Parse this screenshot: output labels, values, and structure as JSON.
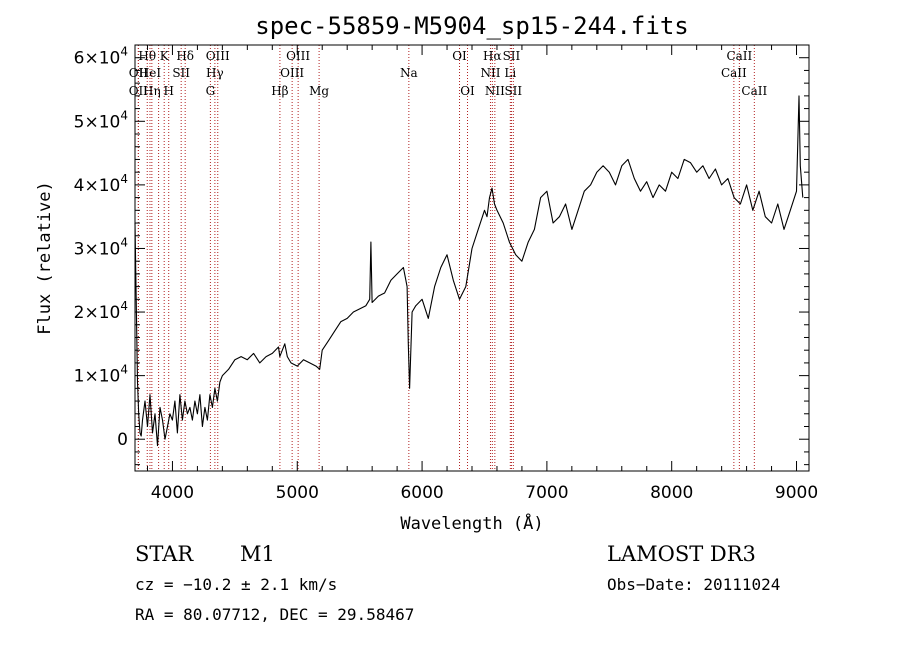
{
  "chart_data": {
    "type": "line",
    "title": "spec-55859-M5904_sp15-244.fits",
    "xlabel": "Wavelength (Å)",
    "ylabel": "Flux (relative)",
    "xlim": [
      3700,
      9100
    ],
    "ylim": [
      -5000,
      62000
    ],
    "x_ticks": [
      {
        "value": 4000,
        "label": "4000"
      },
      {
        "value": 5000,
        "label": "5000"
      },
      {
        "value": 6000,
        "label": "6000"
      },
      {
        "value": 7000,
        "label": "7000"
      },
      {
        "value": 8000,
        "label": "8000"
      },
      {
        "value": 9000,
        "label": "9000"
      }
    ],
    "y_ticks": [
      {
        "value": 0,
        "mant": "0",
        "exp": ""
      },
      {
        "value": 10000,
        "mant": "1×10",
        "exp": "4"
      },
      {
        "value": 20000,
        "mant": "2×10",
        "exp": "4"
      },
      {
        "value": 30000,
        "mant": "3×10",
        "exp": "4"
      },
      {
        "value": 40000,
        "mant": "4×10",
        "exp": "4"
      },
      {
        "value": 50000,
        "mant": "5×10",
        "exp": "4"
      },
      {
        "value": 60000,
        "mant": "6×10",
        "exp": "4"
      }
    ],
    "series": [
      {
        "name": "spectrum",
        "x": [
          3700,
          3710,
          3720,
          3730,
          3740,
          3750,
          3760,
          3780,
          3800,
          3820,
          3840,
          3860,
          3880,
          3900,
          3920,
          3940,
          3960,
          3980,
          4000,
          4020,
          4040,
          4060,
          4080,
          4100,
          4120,
          4140,
          4160,
          4180,
          4200,
          4220,
          4240,
          4260,
          4280,
          4300,
          4320,
          4340,
          4360,
          4380,
          4400,
          4450,
          4500,
          4550,
          4600,
          4650,
          4700,
          4750,
          4800,
          4850,
          4860,
          4880,
          4900,
          4920,
          4950,
          5000,
          5050,
          5100,
          5150,
          5180,
          5200,
          5250,
          5300,
          5350,
          5400,
          5450,
          5500,
          5550,
          5580,
          5590,
          5600,
          5650,
          5700,
          5750,
          5800,
          5850,
          5880,
          5890,
          5900,
          5920,
          5950,
          6000,
          6050,
          6100,
          6150,
          6200,
          6250,
          6300,
          6350,
          6400,
          6450,
          6500,
          6520,
          6540,
          6560,
          6580,
          6600,
          6650,
          6700,
          6750,
          6800,
          6850,
          6900,
          6950,
          7000,
          7050,
          7100,
          7150,
          7200,
          7250,
          7300,
          7350,
          7400,
          7450,
          7500,
          7550,
          7600,
          7650,
          7700,
          7750,
          7800,
          7850,
          7900,
          7950,
          8000,
          8050,
          8100,
          8150,
          8200,
          8250,
          8300,
          8350,
          8400,
          8450,
          8500,
          8550,
          8600,
          8650,
          8700,
          8750,
          8800,
          8850,
          8900,
          8950,
          9000,
          9020,
          9030,
          9050
        ],
        "y": [
          34000,
          22000,
          9000,
          4000,
          1000,
          500,
          3000,
          6000,
          2000,
          7000,
          1000,
          4000,
          -1000,
          5000,
          3000,
          0,
          2000,
          4000,
          3000,
          6000,
          1000,
          7000,
          3000,
          6000,
          4000,
          5000,
          3000,
          6000,
          4000,
          7000,
          2000,
          5000,
          3000,
          7000,
          5000,
          8000,
          6000,
          9000,
          10000,
          11000,
          12500,
          13000,
          12500,
          13500,
          12000,
          13000,
          13500,
          14500,
          13000,
          14000,
          15000,
          13000,
          12000,
          11500,
          12500,
          12000,
          11500,
          11000,
          14000,
          15500,
          17000,
          18500,
          19000,
          20000,
          20500,
          21000,
          22000,
          31000,
          21500,
          22500,
          23000,
          25000,
          26000,
          27000,
          24000,
          15000,
          8000,
          20000,
          21000,
          22000,
          19000,
          24000,
          27000,
          29000,
          25000,
          22000,
          24000,
          30000,
          33000,
          36000,
          35000,
          38000,
          39500,
          37000,
          36000,
          34000,
          31000,
          29000,
          28000,
          31000,
          33000,
          38000,
          39000,
          34000,
          35000,
          37000,
          33000,
          36000,
          39000,
          40000,
          42000,
          43000,
          42000,
          40000,
          43000,
          44000,
          41000,
          39000,
          40500,
          38000,
          40000,
          39000,
          42000,
          41000,
          44000,
          43500,
          42000,
          43000,
          41000,
          42500,
          40000,
          41000,
          38000,
          37000,
          40000,
          36000,
          39000,
          35000,
          34000,
          37000,
          33000,
          36000,
          39000,
          54000,
          43000,
          38000
        ]
      }
    ],
    "emission_lines": [
      {
        "wave": 3727,
        "name": "OII",
        "row": 2
      },
      {
        "wave": 3727,
        "name": "OII",
        "row": 3
      },
      {
        "wave": 3798,
        "name": "Hθ",
        "row": 1
      },
      {
        "wave": 3820,
        "name": "HeI",
        "row": 2
      },
      {
        "wave": 3835,
        "name": "Hη",
        "row": 3
      },
      {
        "wave": 3889,
        "name": "",
        "row": 0
      },
      {
        "wave": 3934,
        "name": "K",
        "row": 1
      },
      {
        "wave": 3970,
        "name": "H",
        "row": 3
      },
      {
        "wave": 4070,
        "name": "SII",
        "row": 2
      },
      {
        "wave": 4102,
        "name": "Hδ",
        "row": 1
      },
      {
        "wave": 4304,
        "name": "G",
        "row": 3
      },
      {
        "wave": 4340,
        "name": "Hγ",
        "row": 2
      },
      {
        "wave": 4363,
        "name": "OIII",
        "row": 1
      },
      {
        "wave": 4861,
        "name": "Hβ",
        "row": 3
      },
      {
        "wave": 4959,
        "name": "OIII",
        "row": 2
      },
      {
        "wave": 5007,
        "name": "OIII",
        "row": 1
      },
      {
        "wave": 5175,
        "name": "Mg",
        "row": 3
      },
      {
        "wave": 5894,
        "name": "Na",
        "row": 2
      },
      {
        "wave": 6300,
        "name": "OI",
        "row": 1
      },
      {
        "wave": 6364,
        "name": "OI",
        "row": 3
      },
      {
        "wave": 6548,
        "name": "NII",
        "row": 2
      },
      {
        "wave": 6563,
        "name": "Hα",
        "row": 1
      },
      {
        "wave": 6583,
        "name": "NII",
        "row": 3
      },
      {
        "wave": 6707,
        "name": "Li",
        "row": 2
      },
      {
        "wave": 6716,
        "name": "SII",
        "row": 1
      },
      {
        "wave": 6731,
        "name": "SII",
        "row": 3
      },
      {
        "wave": 8498,
        "name": "CaII",
        "row": 2
      },
      {
        "wave": 8542,
        "name": "CaII",
        "row": 1
      },
      {
        "wave": 8662,
        "name": "CaII",
        "row": 3
      }
    ],
    "colors": {
      "spectrum": "#000000",
      "line_marker": "#b22222",
      "axis": "#000000"
    }
  },
  "info": {
    "object_class": "STAR",
    "subclass": "M1",
    "survey": "LAMOST DR3",
    "cz": "cz = −10.2 ± 2.1 km/s",
    "obs_date": "Obs−Date: 20111024",
    "coords": "RA =  80.07712, DEC =  29.58467"
  }
}
